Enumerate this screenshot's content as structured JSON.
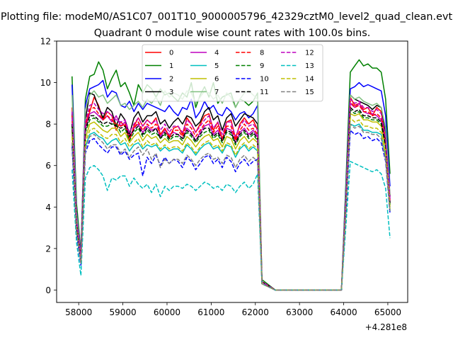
{
  "chart_data": {
    "type": "line",
    "suptitle": "Plotting file: modeM0/AS1C07_001T10_9000005796_42329cztM0_level2_quad_clean.evt",
    "title": "Quadrant 0 module wise count rates with 100.0s bins.",
    "xlabel": "",
    "ylabel": "",
    "x_offset_label": "+4.281e8",
    "xlim": [
      57500,
      65450
    ],
    "ylim": [
      -0.6,
      12
    ],
    "xticks": [
      58000,
      59000,
      60000,
      61000,
      62000,
      63000,
      64000,
      65000
    ],
    "xtick_labels": [
      "58000",
      "59000",
      "60000",
      "61000",
      "62000",
      "63000",
      "64000",
      "65000"
    ],
    "yticks": [
      0,
      2,
      4,
      6,
      8,
      10,
      12
    ],
    "ytick_labels": [
      "0",
      "2",
      "4",
      "6",
      "8",
      "10",
      "12"
    ],
    "grid": false,
    "legend_position": "top-center",
    "x_segments": [
      {
        "start": 57850,
        "end": 62050,
        "step": 100
      },
      {
        "start": 62150,
        "end": 63950,
        "step": 300
      },
      {
        "start": 64050,
        "end": 65050,
        "step": 100
      }
    ],
    "series": [
      {
        "name": "0",
        "color": "#ff0000",
        "dash": "solid",
        "first_seg": [
          8.8,
          3.5,
          1.5,
          8.0,
          8.6,
          9.3,
          8.9,
          8.2,
          8.6,
          8.4,
          7.7,
          8.1,
          7.9,
          7.2,
          7.9,
          8.3,
          7.9,
          8.2,
          8.0,
          8.3,
          7.5,
          7.8,
          7.3,
          7.8,
          7.9,
          7.5,
          8.3,
          8.0,
          7.6,
          8.0,
          8.4,
          8.5,
          7.7,
          8.1,
          7.2,
          8.1,
          8.2,
          7.3,
          8.0,
          8.3,
          8.0,
          8.2,
          7.7
        ],
        "end_val": 0.4,
        "second_seg": [
          4.4,
          9.3,
          8.9,
          9.0,
          8.7,
          8.8,
          8.4,
          8.8,
          8.6,
          7.2,
          4.3
        ]
      },
      {
        "name": "1",
        "color": "#008000",
        "dash": "solid",
        "first_seg": [
          10.3,
          4.2,
          1.8,
          9.2,
          10.3,
          10.4,
          11.0,
          10.6,
          9.7,
          10.2,
          10.6,
          9.8,
          10.0,
          9.5,
          8.9,
          9.9,
          9.5,
          9.9,
          9.7,
          9.3,
          9.7,
          9.4,
          9.5,
          9.3,
          9.1,
          9.5,
          9.3,
          10.0,
          8.8,
          9.4,
          9.8,
          9.3,
          10.0,
          9.0,
          9.3,
          9.4,
          9.5,
          8.8,
          9.2,
          9.1,
          8.9,
          9.1,
          9.5
        ],
        "end_val": 0.5,
        "second_seg": [
          5.2,
          10.5,
          10.8,
          11.1,
          10.8,
          10.9,
          10.7,
          10.7,
          10.5,
          9.2,
          5.6
        ]
      },
      {
        "name": "2",
        "color": "#0000ff",
        "dash": "solid",
        "first_seg": [
          9.9,
          3.8,
          1.7,
          8.9,
          9.7,
          9.8,
          9.9,
          10.1,
          9.3,
          9.6,
          9.5,
          8.9,
          8.8,
          9.1,
          8.6,
          9.0,
          8.7,
          9.0,
          8.9,
          8.8,
          8.7,
          8.6,
          8.9,
          8.6,
          8.4,
          8.8,
          8.7,
          9.2,
          8.3,
          8.6,
          9.1,
          8.7,
          8.9,
          8.5,
          8.4,
          8.8,
          8.6,
          8.2,
          8.5,
          8.6,
          8.3,
          8.5,
          8.9
        ],
        "end_val": 0.4,
        "second_seg": [
          4.9,
          9.7,
          9.8,
          10.0,
          9.8,
          9.9,
          9.8,
          9.7,
          9.6,
          8.4,
          5.0
        ]
      },
      {
        "name": "3",
        "color": "#000000",
        "dash": "solid",
        "first_seg": [
          8.5,
          3.3,
          1.6,
          8.2,
          9.5,
          9.4,
          8.8,
          8.3,
          8.8,
          8.6,
          7.9,
          8.5,
          8.2,
          7.5,
          8.3,
          8.6,
          8.1,
          8.4,
          8.4,
          8.6,
          8.0,
          8.2,
          7.8,
          8.1,
          8.3,
          8.0,
          8.4,
          8.3,
          7.9,
          8.1,
          8.6,
          8.8,
          8.2,
          8.4,
          7.7,
          8.3,
          8.5,
          7.9,
          8.2,
          8.5,
          8.4,
          8.3,
          8.0
        ],
        "end_val": 0.4,
        "second_seg": [
          4.5,
          9.4,
          9.2,
          9.1,
          9.0,
          8.9,
          8.7,
          8.9,
          8.8,
          7.6,
          4.5
        ]
      },
      {
        "name": "4",
        "color": "#bf00bf",
        "dash": "solid",
        "first_seg": [
          8.2,
          3.2,
          1.4,
          7.8,
          8.5,
          8.6,
          8.4,
          8.2,
          8.4,
          8.1,
          8.4,
          7.9,
          8.1,
          7.4,
          7.8,
          8.0,
          7.6,
          7.9,
          7.7,
          7.8,
          7.4,
          7.7,
          7.5,
          7.6,
          7.5,
          7.3,
          7.8,
          7.6,
          7.2,
          7.6,
          7.9,
          8.0,
          7.5,
          7.7,
          7.3,
          7.8,
          7.7,
          7.1,
          7.6,
          7.8,
          7.5,
          7.7,
          7.4
        ],
        "end_val": 0.4,
        "second_seg": [
          4.2,
          9.0,
          8.8,
          9.0,
          8.6,
          8.5,
          8.5,
          8.4,
          8.2,
          7.0,
          4.2
        ]
      },
      {
        "name": "5",
        "color": "#00bfbf",
        "dash": "solid",
        "first_seg": [
          7.0,
          2.8,
          1.3,
          6.9,
          7.5,
          7.6,
          7.4,
          7.3,
          7.0,
          7.2,
          7.3,
          7.0,
          7.1,
          6.7,
          7.0,
          7.1,
          6.8,
          7.0,
          6.9,
          7.0,
          6.7,
          6.9,
          6.7,
          6.8,
          6.8,
          6.6,
          7.0,
          6.8,
          6.5,
          6.8,
          7.0,
          7.1,
          6.8,
          6.9,
          6.6,
          7.0,
          6.9,
          6.4,
          6.8,
          7.0,
          6.7,
          6.9,
          6.7
        ],
        "end_val": 0.3,
        "second_seg": [
          3.8,
          8.0,
          7.9,
          8.0,
          7.7,
          7.7,
          7.6,
          7.6,
          7.5,
          6.4,
          3.8
        ]
      },
      {
        "name": "6",
        "color": "#bfbf00",
        "dash": "solid",
        "first_seg": [
          7.7,
          3.0,
          1.4,
          7.3,
          8.0,
          8.1,
          7.9,
          7.7,
          7.6,
          7.8,
          7.8,
          7.4,
          7.6,
          7.1,
          7.4,
          7.6,
          7.2,
          7.5,
          7.3,
          7.4,
          7.1,
          7.3,
          7.1,
          7.2,
          7.2,
          7.0,
          7.4,
          7.2,
          6.9,
          7.2,
          7.4,
          7.5,
          7.2,
          7.3,
          6.9,
          7.4,
          7.3,
          6.8,
          7.2,
          7.4,
          7.1,
          7.3,
          7.1
        ],
        "end_val": 0.3,
        "second_seg": [
          4.0,
          8.5,
          8.4,
          8.5,
          8.2,
          8.2,
          8.1,
          8.1,
          7.9,
          6.8,
          4.0
        ]
      },
      {
        "name": "7",
        "color": "#80c080",
        "dash": "solid",
        "first_seg": [
          9.4,
          3.7,
          1.6,
          8.7,
          9.4,
          9.6,
          9.3,
          9.4,
          9.0,
          9.2,
          9.4,
          8.9,
          9.0,
          8.7,
          8.9,
          9.1,
          8.8,
          9.2,
          9.0,
          9.3,
          8.9,
          9.6,
          9.3,
          9.5,
          9.4,
          9.2,
          9.6,
          9.5,
          9.0,
          9.3,
          9.6,
          9.5,
          9.2,
          9.4,
          9.0,
          9.5,
          9.3,
          8.8,
          9.2,
          9.5,
          9.6,
          9.4,
          9.2
        ],
        "end_val": 0.4,
        "second_seg": [
          4.7,
          9.4,
          9.2,
          9.3,
          9.1,
          9.0,
          8.9,
          9.0,
          8.8,
          7.8,
          4.6
        ]
      },
      {
        "name": "8",
        "color": "#ff0000",
        "dash": "dashed",
        "first_seg": [
          8.4,
          3.3,
          1.5,
          7.9,
          8.7,
          8.8,
          8.5,
          8.2,
          8.4,
          8.2,
          8.0,
          7.9,
          8.0,
          7.3,
          7.8,
          8.1,
          7.7,
          8.0,
          7.8,
          8.0,
          7.5,
          7.8,
          7.4,
          7.7,
          7.7,
          7.4,
          8.0,
          7.8,
          7.4,
          7.7,
          8.0,
          8.2,
          7.6,
          7.9,
          7.3,
          7.9,
          7.9,
          7.2,
          7.7,
          8.0,
          7.7,
          7.8,
          7.5
        ],
        "end_val": 0.4,
        "second_seg": [
          4.3,
          9.1,
          8.8,
          8.9,
          8.6,
          8.6,
          8.4,
          8.5,
          8.3,
          7.1,
          4.3
        ]
      },
      {
        "name": "9",
        "color": "#008000",
        "dash": "dashed",
        "first_seg": [
          7.9,
          3.1,
          1.4,
          7.6,
          8.2,
          8.3,
          8.1,
          7.9,
          7.9,
          8.0,
          8.0,
          7.6,
          7.8,
          7.2,
          7.6,
          7.8,
          7.4,
          7.7,
          7.5,
          7.6,
          7.3,
          7.5,
          7.2,
          7.4,
          7.4,
          7.2,
          7.6,
          7.4,
          7.1,
          7.4,
          7.6,
          7.7,
          7.3,
          7.5,
          7.1,
          7.6,
          7.5,
          7.0,
          7.4,
          7.6,
          7.3,
          7.5,
          7.2
        ],
        "end_val": 0.3,
        "second_seg": [
          4.1,
          8.7,
          8.5,
          8.6,
          8.3,
          8.3,
          8.2,
          8.2,
          8.0,
          6.9,
          4.1
        ]
      },
      {
        "name": "10",
        "color": "#0000ff",
        "dash": "dashed",
        "first_seg": [
          6.9,
          2.7,
          1.2,
          6.6,
          7.2,
          7.3,
          7.0,
          6.8,
          6.6,
          6.9,
          6.9,
          6.5,
          6.7,
          6.3,
          6.5,
          6.6,
          5.5,
          6.4,
          6.1,
          6.5,
          6.0,
          6.4,
          6.1,
          6.3,
          6.2,
          5.9,
          6.4,
          6.2,
          5.8,
          6.1,
          6.4,
          6.5,
          6.1,
          6.3,
          5.9,
          6.4,
          6.2,
          5.7,
          6.1,
          6.3,
          6.0,
          6.2,
          6.3
        ],
        "end_val": 0.3,
        "second_seg": [
          3.7,
          7.7,
          7.5,
          7.6,
          7.3,
          7.4,
          7.2,
          7.3,
          7.1,
          6.2,
          3.7
        ]
      },
      {
        "name": "11",
        "color": "#000000",
        "dash": "dashed",
        "first_seg": [
          8.0,
          3.2,
          1.5,
          7.7,
          8.4,
          8.4,
          8.2,
          8.0,
          8.1,
          8.0,
          7.9,
          7.8,
          7.9,
          7.4,
          7.7,
          7.9,
          7.5,
          7.8,
          7.6,
          7.8,
          7.3,
          7.6,
          7.3,
          7.5,
          7.5,
          7.3,
          7.7,
          7.5,
          7.2,
          7.5,
          7.8,
          7.8,
          7.4,
          7.6,
          7.2,
          7.7,
          7.6,
          7.1,
          7.5,
          7.7,
          7.4,
          7.6,
          7.3
        ],
        "end_val": 0.4,
        "second_seg": [
          4.2,
          8.8,
          8.6,
          8.7,
          8.4,
          8.4,
          8.3,
          8.3,
          8.1,
          7.0,
          4.2
        ]
      },
      {
        "name": "12",
        "color": "#bf00bf",
        "dash": "dashed",
        "first_seg": [
          8.6,
          3.4,
          1.6,
          8.1,
          8.9,
          9.0,
          8.7,
          8.5,
          8.6,
          8.4,
          8.2,
          8.1,
          8.2,
          7.6,
          8.0,
          8.3,
          7.9,
          8.2,
          8.0,
          8.2,
          7.7,
          8.0,
          7.6,
          7.9,
          7.9,
          7.6,
          8.2,
          8.0,
          7.6,
          7.9,
          8.2,
          8.4,
          7.8,
          8.1,
          7.5,
          8.1,
          8.1,
          7.4,
          7.9,
          8.2,
          7.9,
          8.0,
          7.7
        ],
        "end_val": 0.4,
        "second_seg": [
          4.4,
          9.2,
          9.0,
          9.1,
          8.8,
          8.8,
          8.6,
          8.7,
          8.5,
          7.3,
          4.4
        ]
      },
      {
        "name": "13",
        "color": "#00bfbf",
        "dash": "dashed",
        "first_seg": [
          5.8,
          2.3,
          0.7,
          5.4,
          5.9,
          6.0,
          5.8,
          5.5,
          4.8,
          5.4,
          5.3,
          5.5,
          5.5,
          5.0,
          5.4,
          5.1,
          4.9,
          5.1,
          4.7,
          5.1,
          4.5,
          5.0,
          4.8,
          5.0,
          5.0,
          4.9,
          5.1,
          5.0,
          4.8,
          5.0,
          5.2,
          5.1,
          4.9,
          5.0,
          4.8,
          5.1,
          5.0,
          4.7,
          5.0,
          5.2,
          4.9,
          5.1,
          5.6
        ],
        "end_val": 0.3,
        "second_seg": [
          3.1,
          6.2,
          6.1,
          6.0,
          5.9,
          5.8,
          5.7,
          5.8,
          5.6,
          4.9,
          2.5
        ]
      },
      {
        "name": "14",
        "color": "#bfbf00",
        "dash": "dashed",
        "first_seg": [
          7.4,
          2.9,
          1.3,
          7.1,
          7.7,
          7.8,
          7.6,
          7.4,
          7.3,
          7.5,
          7.5,
          7.1,
          7.3,
          6.9,
          7.1,
          7.3,
          6.9,
          7.2,
          7.0,
          7.1,
          6.8,
          7.0,
          6.8,
          6.9,
          6.9,
          6.7,
          7.1,
          6.9,
          6.6,
          6.9,
          7.1,
          7.2,
          6.9,
          7.0,
          6.7,
          7.1,
          7.0,
          6.5,
          6.9,
          7.1,
          6.8,
          7.0,
          6.8
        ],
        "end_val": 0.3,
        "second_seg": [
          3.9,
          8.3,
          8.1,
          8.2,
          7.9,
          7.9,
          7.8,
          7.8,
          7.6,
          6.5,
          3.9
        ]
      },
      {
        "name": "15",
        "color": "#808080",
        "dash": "dashed",
        "first_seg": [
          7.1,
          2.8,
          1.3,
          6.8,
          7.4,
          7.5,
          7.3,
          7.1,
          6.8,
          7.0,
          7.0,
          6.6,
          6.8,
          6.4,
          6.7,
          6.9,
          6.5,
          6.8,
          6.3,
          6.6,
          5.9,
          6.3,
          6.1,
          6.3,
          6.3,
          6.1,
          6.5,
          6.3,
          6.0,
          6.3,
          6.5,
          6.6,
          6.3,
          6.4,
          6.1,
          6.5,
          6.4,
          5.9,
          6.3,
          6.5,
          6.2,
          6.4,
          6.2
        ],
        "end_val": 0.3,
        "second_seg": [
          3.8,
          8.0,
          7.8,
          7.9,
          7.6,
          7.6,
          7.5,
          7.5,
          7.3,
          6.3,
          3.8
        ]
      }
    ]
  }
}
